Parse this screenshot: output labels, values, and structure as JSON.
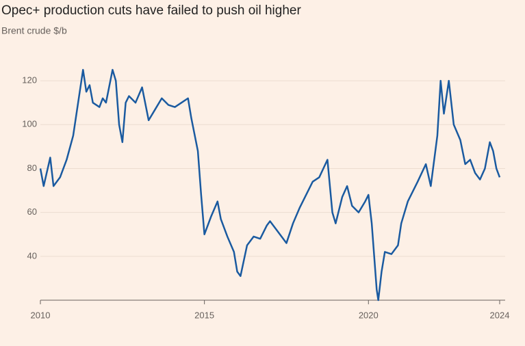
{
  "chart_data": {
    "type": "line",
    "title": "Opec+ production cuts have failed to push oil higher",
    "subtitle": "Brent crude $/b",
    "x": [
      2010.0,
      2010.1,
      2010.3,
      2010.4,
      2010.6,
      2010.8,
      2011.0,
      2011.15,
      2011.3,
      2011.4,
      2011.5,
      2011.6,
      2011.8,
      2011.9,
      2012.0,
      2012.2,
      2012.3,
      2012.4,
      2012.5,
      2012.6,
      2012.7,
      2012.9,
      2013.1,
      2013.3,
      2013.5,
      2013.7,
      2013.9,
      2014.1,
      2014.3,
      2014.5,
      2014.6,
      2014.8,
      2014.9,
      2015.0,
      2015.2,
      2015.4,
      2015.5,
      2015.7,
      2015.9,
      2016.0,
      2016.1,
      2016.3,
      2016.5,
      2016.7,
      2016.9,
      2017.0,
      2017.2,
      2017.5,
      2017.7,
      2017.9,
      2018.1,
      2018.3,
      2018.5,
      2018.75,
      2018.9,
      2019.0,
      2019.2,
      2019.35,
      2019.5,
      2019.7,
      2019.9,
      2020.0,
      2020.1,
      2020.25,
      2020.3,
      2020.4,
      2020.5,
      2020.7,
      2020.9,
      2021.0,
      2021.2,
      2021.5,
      2021.75,
      2021.9,
      2022.1,
      2022.2,
      2022.3,
      2022.45,
      2022.6,
      2022.8,
      2022.95,
      2023.1,
      2023.25,
      2023.4,
      2023.55,
      2023.7,
      2023.8,
      2023.9,
      2024.0
    ],
    "series": [
      {
        "name": "Brent crude",
        "color": "#1a5aa0",
        "values": [
          80,
          72,
          85,
          72,
          76,
          84,
          95,
          110,
          125,
          115,
          118,
          110,
          108,
          112,
          110,
          125,
          120,
          100,
          92,
          110,
          113,
          110,
          117,
          102,
          107,
          112,
          109,
          108,
          110,
          112,
          103,
          88,
          68,
          50,
          58,
          65,
          57,
          49,
          42,
          33,
          31,
          45,
          49,
          48,
          54,
          56,
          52,
          46,
          55,
          62,
          68,
          74,
          76,
          84,
          60,
          55,
          67,
          72,
          63,
          60,
          65,
          68,
          55,
          25,
          20,
          33,
          42,
          41,
          45,
          55,
          65,
          74,
          82,
          72,
          95,
          120,
          105,
          120,
          100,
          93,
          82,
          84,
          78,
          75,
          80,
          92,
          88,
          80,
          76
        ]
      }
    ],
    "xlim": [
      2010,
      2024
    ],
    "xticks": [
      2010,
      2015,
      2020,
      2024
    ],
    "ylim": [
      20,
      130
    ],
    "yticks": [
      40,
      60,
      80,
      100,
      120
    ],
    "grid": true
  }
}
